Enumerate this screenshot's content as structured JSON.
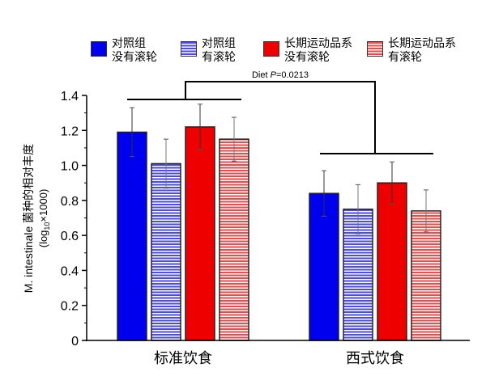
{
  "chart_data": {
    "type": "bar",
    "ylabel": "M. intestinale 菌种的相对丰度",
    "ylabel_unit_prefix": "(log",
    "ylabel_unit_sub": "10",
    "ylabel_unit_suffix": "×1000)",
    "ylim": [
      0,
      1.4
    ],
    "yticks": [
      "0",
      "0.2",
      "0.4",
      "0.6",
      "0.8",
      "1.0",
      "1.2",
      "1.4"
    ],
    "categories": [
      "标准饮食",
      "西式饮食"
    ],
    "series": [
      {
        "name": "对照组 没有滚轮",
        "line1": "对照组",
        "line2": "没有滚轮",
        "color": "#0000ee",
        "hatched": false,
        "values": [
          1.19,
          0.84
        ],
        "errors": [
          0.14,
          0.13
        ]
      },
      {
        "name": "对照组 有滚轮",
        "line1": "对照组",
        "line2": "有滚轮",
        "color": "#4a4aee",
        "hatched": true,
        "values": [
          1.01,
          0.75
        ],
        "errors": [
          0.14,
          0.14
        ]
      },
      {
        "name": "长期运动品系 没有滚轮",
        "line1": "长期运动品系",
        "line2": "没有滚轮",
        "color": "#ee0000",
        "hatched": false,
        "values": [
          1.22,
          0.9
        ],
        "errors": [
          0.13,
          0.12
        ]
      },
      {
        "name": "长期运动品系 有滚轮",
        "line1": "长期运动品系",
        "line2": "有滚轮",
        "color": "#ee4a4a",
        "hatched": true,
        "values": [
          1.15,
          0.74
        ],
        "errors": [
          0.125,
          0.12
        ]
      }
    ],
    "annotation_prefix": "Diet ",
    "annotation_p": "P",
    "annotation_value": "=0.0213",
    "legend_position": "top"
  }
}
